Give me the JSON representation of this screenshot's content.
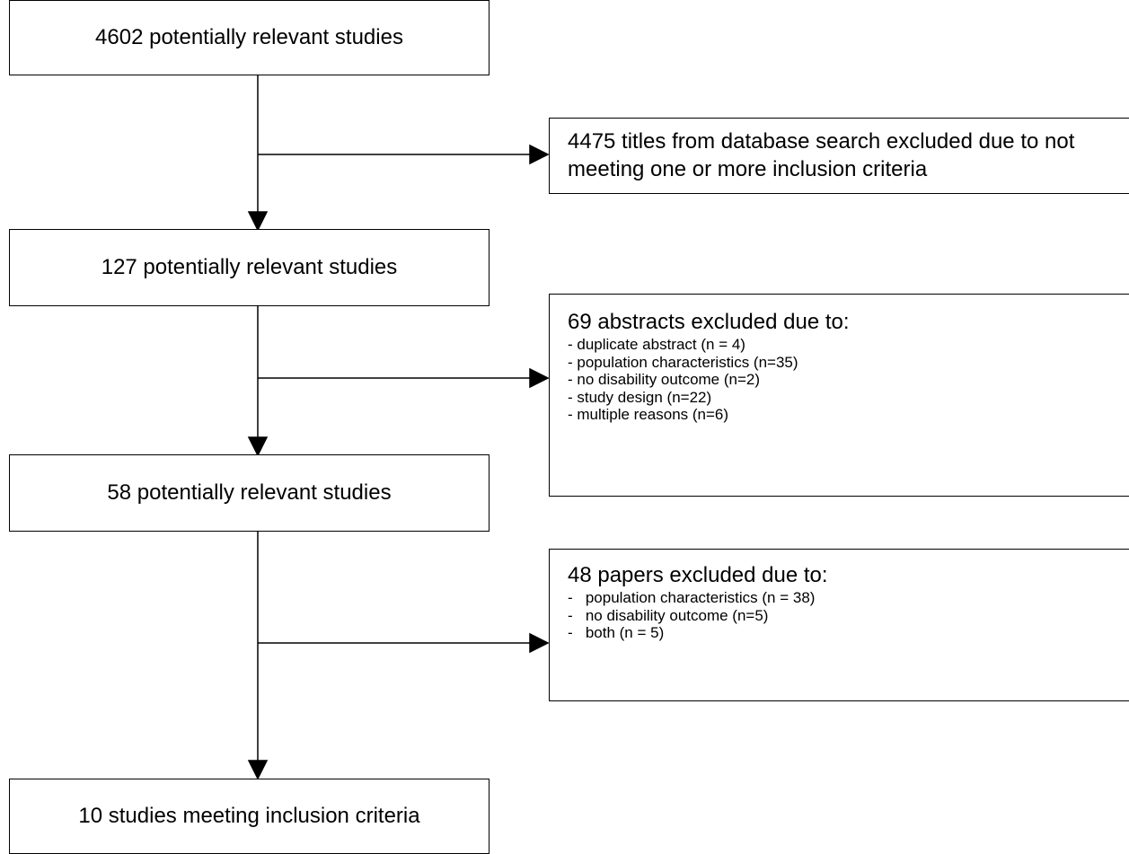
{
  "main_flow": [
    {
      "text": "4602 potentially relevant studies"
    },
    {
      "text": "127 potentially relevant studies"
    },
    {
      "text": "58 potentially relevant studies"
    },
    {
      "text": "10 studies meeting inclusion criteria"
    }
  ],
  "exclusions": [
    {
      "title": "4475 titles from database search excluded due to not meeting one or more inclusion criteria",
      "items": []
    },
    {
      "title": "69 abstracts excluded due to:",
      "items": [
        "- duplicate abstract (n = 4)",
        "- population characteristics (n=35)",
        "- no disability outcome (n=2)",
        "- study design (n=22)",
        "- multiple reasons (n=6)"
      ]
    },
    {
      "title": "48 papers excluded due to:",
      "items": [
        "-   population characteristics (n = 38)",
        "-   no disability outcome (n=5)",
        "-   both (n = 5)"
      ]
    }
  ]
}
